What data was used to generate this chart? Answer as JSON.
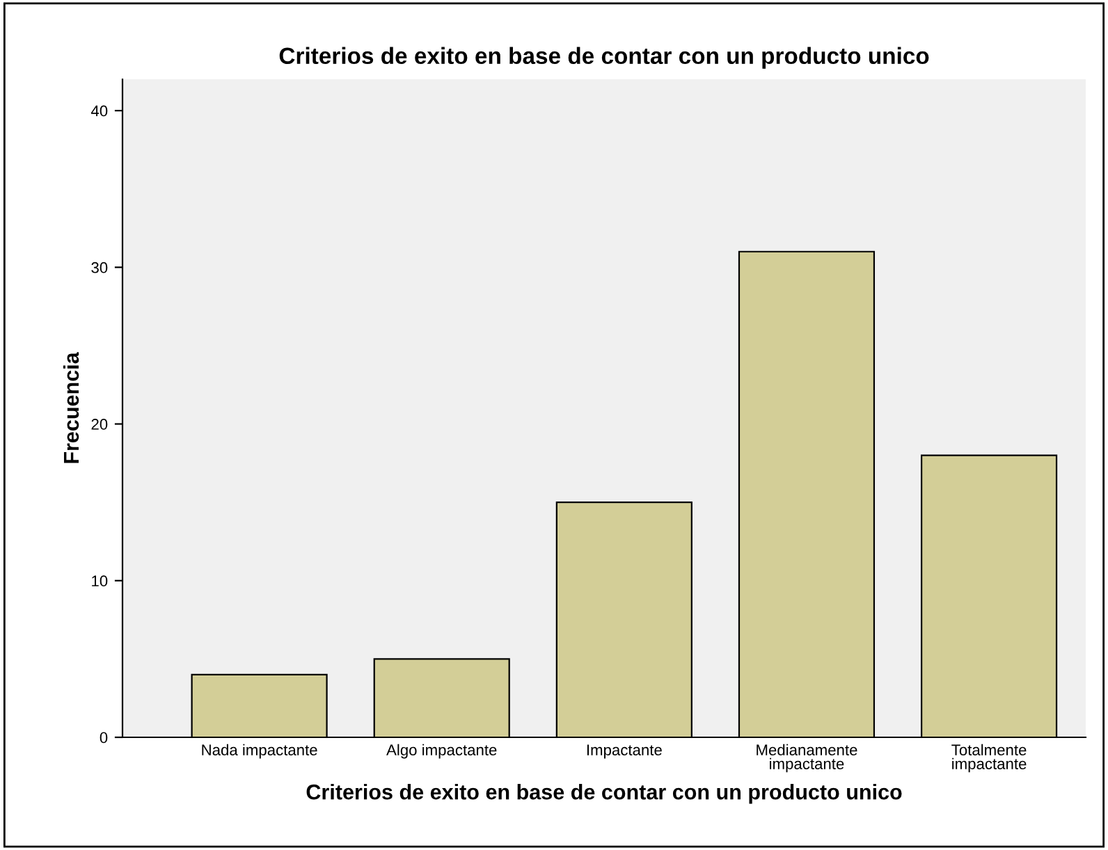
{
  "chart_data": {
    "type": "bar",
    "title": "Criterios de exito en base de contar con un producto unico",
    "xlabel": "Criterios de exito en base de contar con un producto unico",
    "ylabel": "Frecuencia",
    "categories": [
      "Nada impactante",
      "Algo impactante",
      "Impactante",
      "Medianamente\nimpactante",
      "Totalmente\nimpactante"
    ],
    "values": [
      4,
      5,
      15,
      31,
      18
    ],
    "color": "#d3ce97",
    "ylim": [
      0,
      42
    ],
    "yticks": [
      0,
      10,
      20,
      30,
      40
    ],
    "grid": false,
    "legend": false
  }
}
